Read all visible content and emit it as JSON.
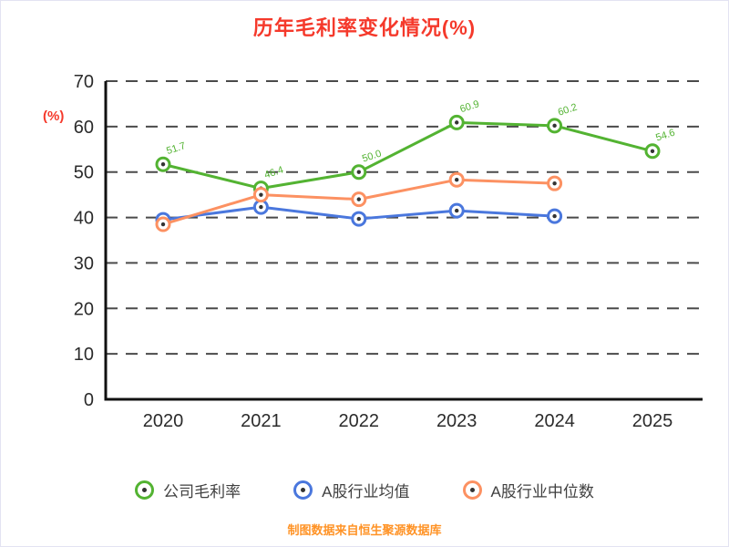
{
  "colors": {
    "title": "#f5392b",
    "footer": "#ff9326",
    "axis": "#111111",
    "grid": "#4a4a4a",
    "tick_text": "#2b2b2b"
  },
  "footer": "制图数据来自恒生聚源数据库",
  "chart_data": {
    "type": "line",
    "title": "历年毛利率变化情况(%)",
    "ylabel": "(%)",
    "xlabel": "",
    "x": [
      "2020",
      "2021",
      "2022",
      "2023",
      "2024",
      "2025"
    ],
    "ylim": [
      0,
      70
    ],
    "yticks": [
      0,
      10,
      20,
      30,
      40,
      50,
      60,
      70
    ],
    "grid": "horizontal-dashed",
    "legend_position": "bottom",
    "series": [
      {
        "name": "公司毛利率",
        "color": "#53b332",
        "values": [
          51.7,
          46.4,
          50.0,
          60.9,
          60.2,
          54.6
        ],
        "point_labels": [
          "51.7",
          "46.4",
          "50.0",
          "60.9",
          "60.2",
          "54.6"
        ]
      },
      {
        "name": "A股行业均值",
        "color": "#4a77dd",
        "values": [
          39.5,
          42.3,
          39.7,
          41.5,
          40.3,
          null
        ]
      },
      {
        "name": "A股行业中位数",
        "color": "#fc9162",
        "values": [
          38.5,
          45.0,
          44.0,
          48.3,
          47.5,
          null
        ]
      }
    ]
  }
}
